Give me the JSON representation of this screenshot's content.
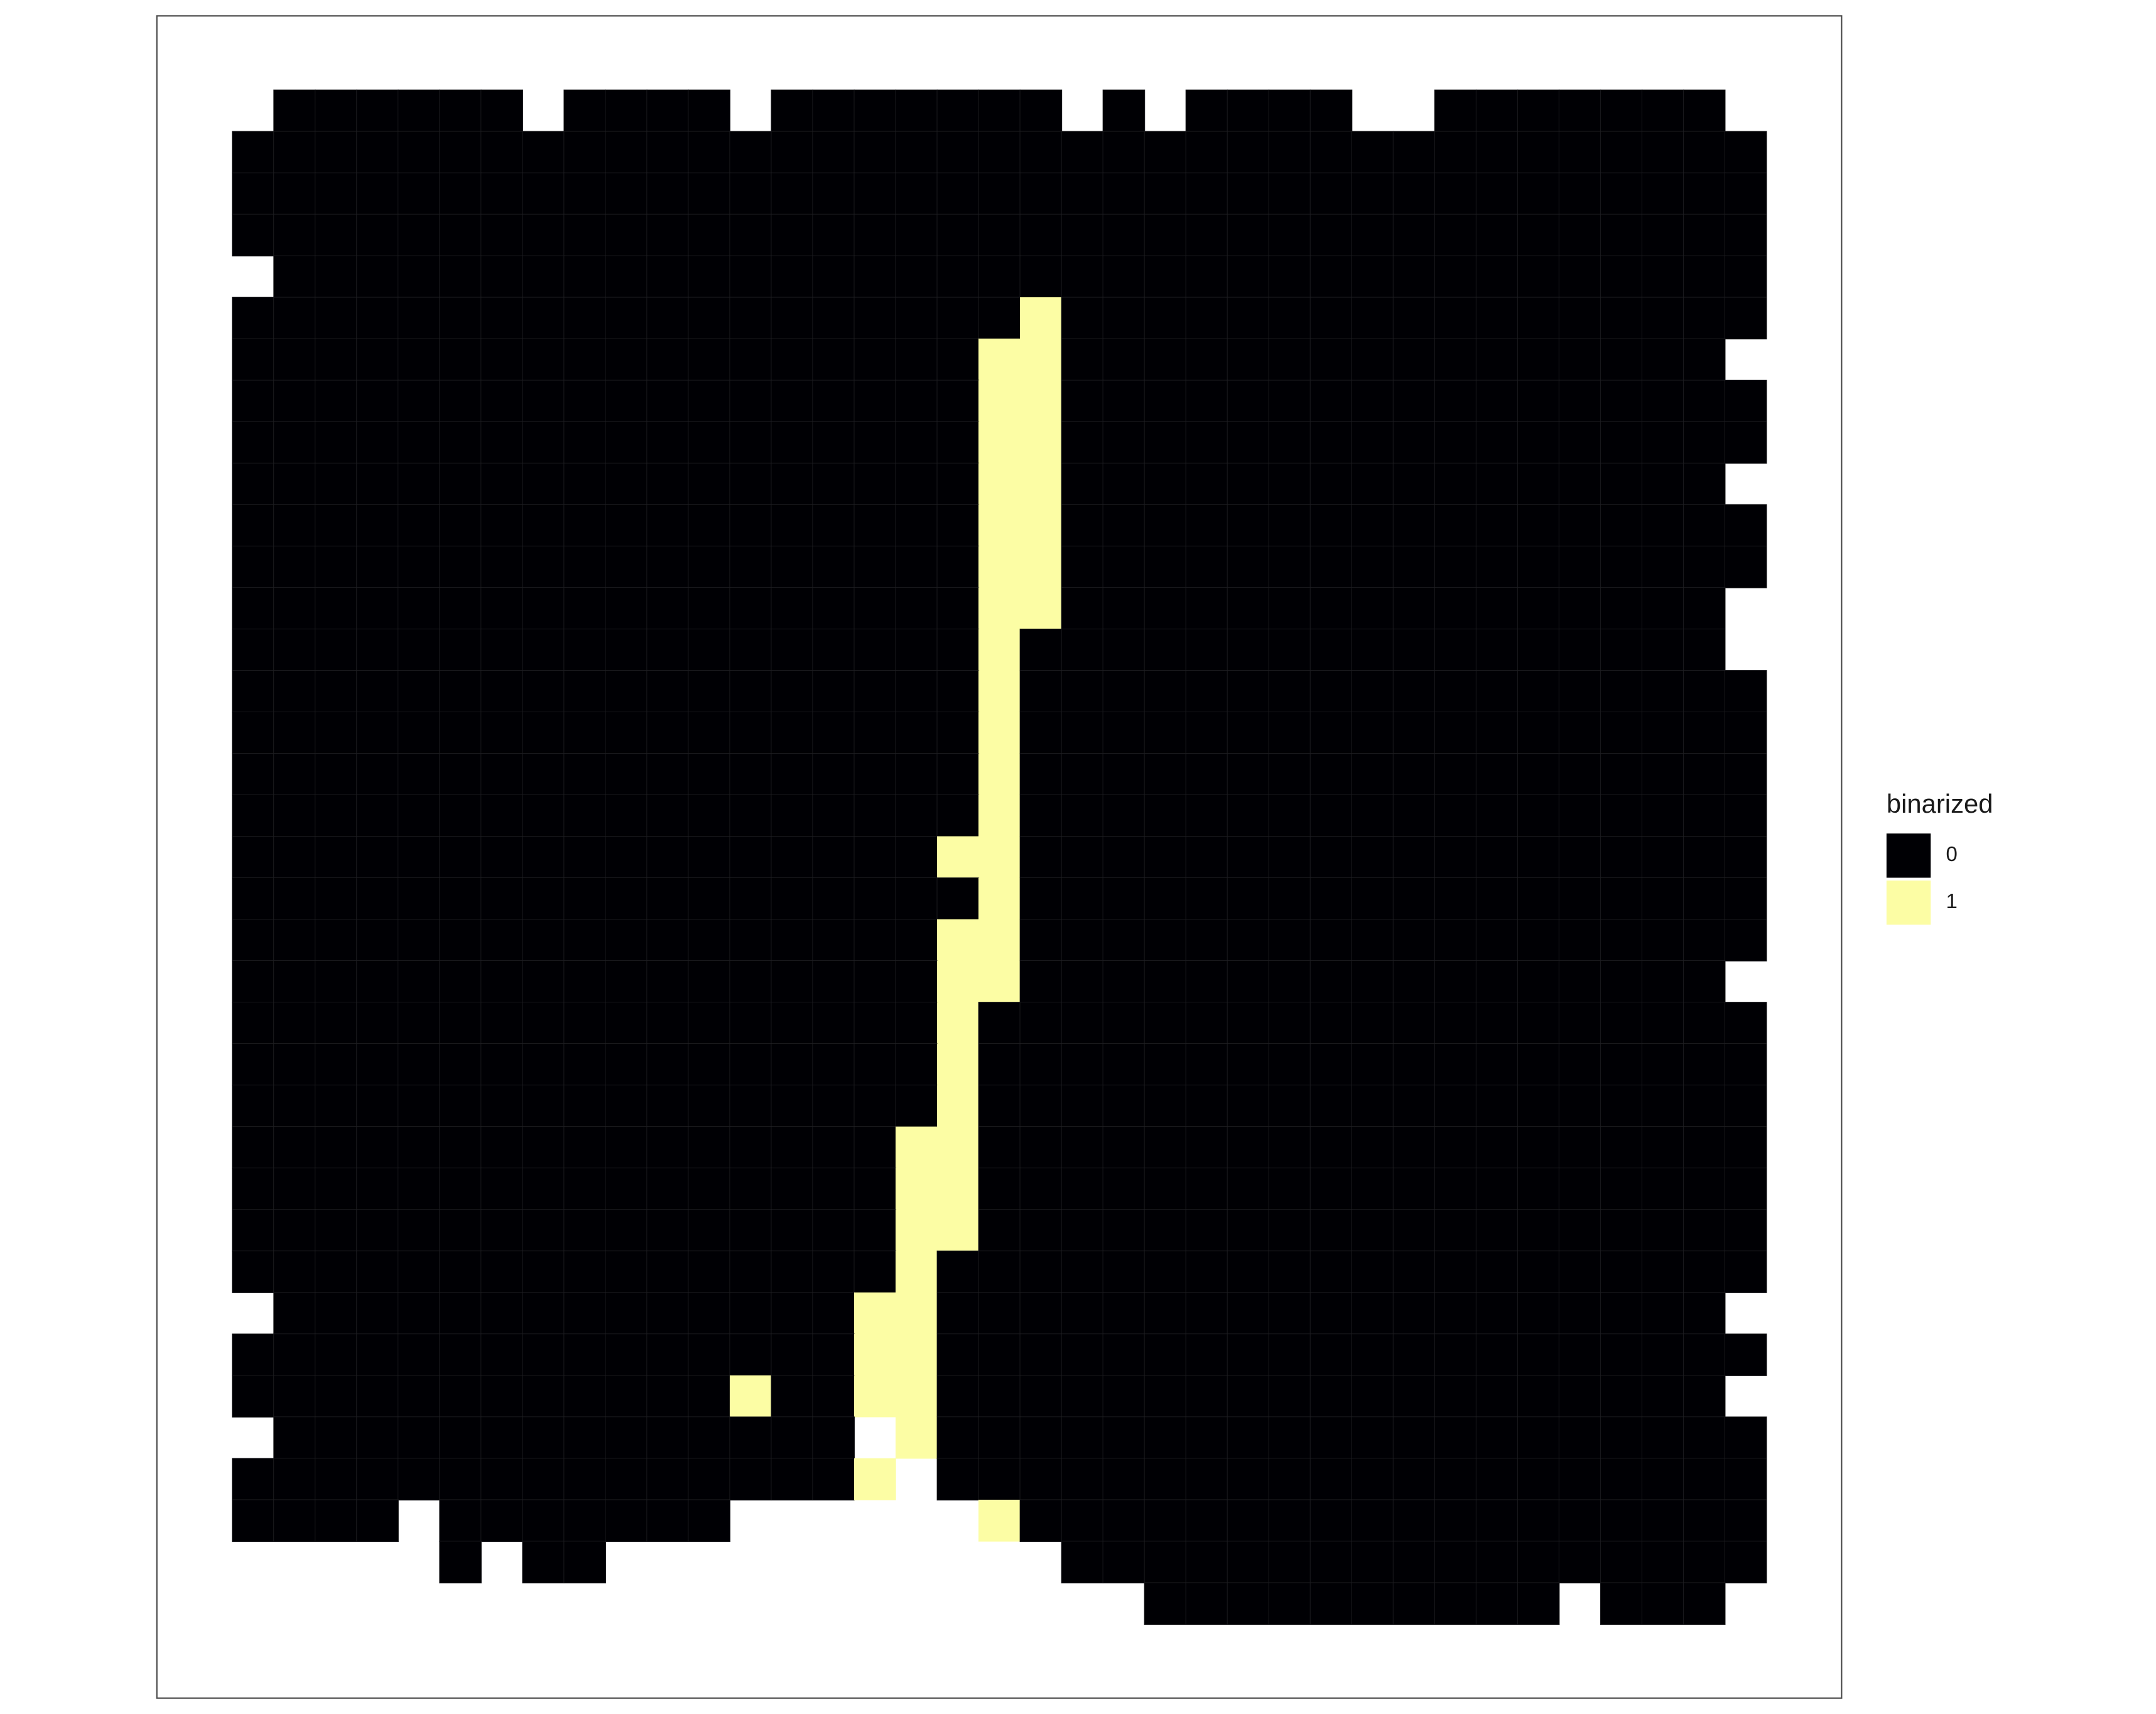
{
  "chart_data": {
    "type": "heatmap",
    "legend": {
      "title": "binarized",
      "levels": [
        0,
        1
      ],
      "colors": [
        "#000004",
        "#fcfda4"
      ]
    },
    "values": [
      [
        null,
        0,
        0,
        0,
        0,
        0,
        0,
        null,
        0,
        0,
        0,
        0,
        null,
        0,
        0,
        0,
        0,
        0,
        0,
        0,
        null,
        0,
        null,
        0,
        0,
        0,
        0,
        null,
        null,
        0,
        0,
        0,
        0,
        0,
        0,
        0,
        null
      ],
      [
        0,
        0,
        0,
        0,
        0,
        0,
        0,
        0,
        0,
        0,
        0,
        0,
        0,
        0,
        0,
        0,
        0,
        0,
        0,
        0,
        0,
        0,
        0,
        0,
        0,
        0,
        0,
        0,
        0,
        0,
        0,
        0,
        0,
        0,
        0,
        0,
        0
      ],
      [
        0,
        0,
        0,
        0,
        0,
        0,
        0,
        0,
        0,
        0,
        0,
        0,
        0,
        0,
        0,
        0,
        0,
        0,
        0,
        0,
        0,
        0,
        0,
        0,
        0,
        0,
        0,
        0,
        0,
        0,
        0,
        0,
        0,
        0,
        0,
        0,
        0
      ],
      [
        0,
        0,
        0,
        0,
        0,
        0,
        0,
        0,
        0,
        0,
        0,
        0,
        0,
        0,
        0,
        0,
        0,
        0,
        0,
        0,
        0,
        0,
        0,
        0,
        0,
        0,
        0,
        0,
        0,
        0,
        0,
        0,
        0,
        0,
        0,
        0,
        0
      ],
      [
        null,
        0,
        0,
        0,
        0,
        0,
        0,
        0,
        0,
        0,
        0,
        0,
        0,
        0,
        0,
        0,
        0,
        0,
        0,
        0,
        0,
        0,
        0,
        0,
        0,
        0,
        0,
        0,
        0,
        0,
        0,
        0,
        0,
        0,
        0,
        0,
        0
      ],
      [
        0,
        0,
        0,
        0,
        0,
        0,
        0,
        0,
        0,
        0,
        0,
        0,
        0,
        0,
        0,
        0,
        0,
        0,
        0,
        1,
        0,
        0,
        0,
        0,
        0,
        0,
        0,
        0,
        0,
        0,
        0,
        0,
        0,
        0,
        0,
        0,
        0
      ],
      [
        0,
        0,
        0,
        0,
        0,
        0,
        0,
        0,
        0,
        0,
        0,
        0,
        0,
        0,
        0,
        0,
        0,
        0,
        1,
        1,
        0,
        0,
        0,
        0,
        0,
        0,
        0,
        0,
        0,
        0,
        0,
        0,
        0,
        0,
        0,
        0,
        null
      ],
      [
        0,
        0,
        0,
        0,
        0,
        0,
        0,
        0,
        0,
        0,
        0,
        0,
        0,
        0,
        0,
        0,
        0,
        0,
        1,
        1,
        0,
        0,
        0,
        0,
        0,
        0,
        0,
        0,
        0,
        0,
        0,
        0,
        0,
        0,
        0,
        0,
        0
      ],
      [
        0,
        0,
        0,
        0,
        0,
        0,
        0,
        0,
        0,
        0,
        0,
        0,
        0,
        0,
        0,
        0,
        0,
        0,
        1,
        1,
        0,
        0,
        0,
        0,
        0,
        0,
        0,
        0,
        0,
        0,
        0,
        0,
        0,
        0,
        0,
        0,
        0
      ],
      [
        0,
        0,
        0,
        0,
        0,
        0,
        0,
        0,
        0,
        0,
        0,
        0,
        0,
        0,
        0,
        0,
        0,
        0,
        1,
        1,
        0,
        0,
        0,
        0,
        0,
        0,
        0,
        0,
        0,
        0,
        0,
        0,
        0,
        0,
        0,
        0,
        null
      ],
      [
        0,
        0,
        0,
        0,
        0,
        0,
        0,
        0,
        0,
        0,
        0,
        0,
        0,
        0,
        0,
        0,
        0,
        0,
        1,
        1,
        0,
        0,
        0,
        0,
        0,
        0,
        0,
        0,
        0,
        0,
        0,
        0,
        0,
        0,
        0,
        0,
        0
      ],
      [
        0,
        0,
        0,
        0,
        0,
        0,
        0,
        0,
        0,
        0,
        0,
        0,
        0,
        0,
        0,
        0,
        0,
        0,
        1,
        1,
        0,
        0,
        0,
        0,
        0,
        0,
        0,
        0,
        0,
        0,
        0,
        0,
        0,
        0,
        0,
        0,
        0
      ],
      [
        0,
        0,
        0,
        0,
        0,
        0,
        0,
        0,
        0,
        0,
        0,
        0,
        0,
        0,
        0,
        0,
        0,
        0,
        1,
        1,
        0,
        0,
        0,
        0,
        0,
        0,
        0,
        0,
        0,
        0,
        0,
        0,
        0,
        0,
        0,
        0,
        null
      ],
      [
        0,
        0,
        0,
        0,
        0,
        0,
        0,
        0,
        0,
        0,
        0,
        0,
        0,
        0,
        0,
        0,
        0,
        0,
        1,
        0,
        0,
        0,
        0,
        0,
        0,
        0,
        0,
        0,
        0,
        0,
        0,
        0,
        0,
        0,
        0,
        0,
        null
      ],
      [
        0,
        0,
        0,
        0,
        0,
        0,
        0,
        0,
        0,
        0,
        0,
        0,
        0,
        0,
        0,
        0,
        0,
        0,
        1,
        0,
        0,
        0,
        0,
        0,
        0,
        0,
        0,
        0,
        0,
        0,
        0,
        0,
        0,
        0,
        0,
        0,
        0
      ],
      [
        0,
        0,
        0,
        0,
        0,
        0,
        0,
        0,
        0,
        0,
        0,
        0,
        0,
        0,
        0,
        0,
        0,
        0,
        1,
        0,
        0,
        0,
        0,
        0,
        0,
        0,
        0,
        0,
        0,
        0,
        0,
        0,
        0,
        0,
        0,
        0,
        0
      ],
      [
        0,
        0,
        0,
        0,
        0,
        0,
        0,
        0,
        0,
        0,
        0,
        0,
        0,
        0,
        0,
        0,
        0,
        0,
        1,
        0,
        0,
        0,
        0,
        0,
        0,
        0,
        0,
        0,
        0,
        0,
        0,
        0,
        0,
        0,
        0,
        0,
        0
      ],
      [
        0,
        0,
        0,
        0,
        0,
        0,
        0,
        0,
        0,
        0,
        0,
        0,
        0,
        0,
        0,
        0,
        0,
        0,
        1,
        0,
        0,
        0,
        0,
        0,
        0,
        0,
        0,
        0,
        0,
        0,
        0,
        0,
        0,
        0,
        0,
        0,
        0
      ],
      [
        0,
        0,
        0,
        0,
        0,
        0,
        0,
        0,
        0,
        0,
        0,
        0,
        0,
        0,
        0,
        0,
        0,
        1,
        1,
        0,
        0,
        0,
        0,
        0,
        0,
        0,
        0,
        0,
        0,
        0,
        0,
        0,
        0,
        0,
        0,
        0,
        0
      ],
      [
        0,
        0,
        0,
        0,
        0,
        0,
        0,
        0,
        0,
        0,
        0,
        0,
        0,
        0,
        0,
        0,
        0,
        0,
        1,
        0,
        0,
        0,
        0,
        0,
        0,
        0,
        0,
        0,
        0,
        0,
        0,
        0,
        0,
        0,
        0,
        0,
        0
      ],
      [
        0,
        0,
        0,
        0,
        0,
        0,
        0,
        0,
        0,
        0,
        0,
        0,
        0,
        0,
        0,
        0,
        0,
        1,
        1,
        0,
        0,
        0,
        0,
        0,
        0,
        0,
        0,
        0,
        0,
        0,
        0,
        0,
        0,
        0,
        0,
        0,
        0
      ],
      [
        0,
        0,
        0,
        0,
        0,
        0,
        0,
        0,
        0,
        0,
        0,
        0,
        0,
        0,
        0,
        0,
        0,
        1,
        1,
        0,
        0,
        0,
        0,
        0,
        0,
        0,
        0,
        0,
        0,
        0,
        0,
        0,
        0,
        0,
        0,
        0,
        null
      ],
      [
        0,
        0,
        0,
        0,
        0,
        0,
        0,
        0,
        0,
        0,
        0,
        0,
        0,
        0,
        0,
        0,
        0,
        1,
        0,
        0,
        0,
        0,
        0,
        0,
        0,
        0,
        0,
        0,
        0,
        0,
        0,
        0,
        0,
        0,
        0,
        0,
        0
      ],
      [
        0,
        0,
        0,
        0,
        0,
        0,
        0,
        0,
        0,
        0,
        0,
        0,
        0,
        0,
        0,
        0,
        0,
        1,
        0,
        0,
        0,
        0,
        0,
        0,
        0,
        0,
        0,
        0,
        0,
        0,
        0,
        0,
        0,
        0,
        0,
        0,
        0
      ],
      [
        0,
        0,
        0,
        0,
        0,
        0,
        0,
        0,
        0,
        0,
        0,
        0,
        0,
        0,
        0,
        0,
        0,
        1,
        0,
        0,
        0,
        0,
        0,
        0,
        0,
        0,
        0,
        0,
        0,
        0,
        0,
        0,
        0,
        0,
        0,
        0,
        0
      ],
      [
        0,
        0,
        0,
        0,
        0,
        0,
        0,
        0,
        0,
        0,
        0,
        0,
        0,
        0,
        0,
        0,
        1,
        1,
        0,
        0,
        0,
        0,
        0,
        0,
        0,
        0,
        0,
        0,
        0,
        0,
        0,
        0,
        0,
        0,
        0,
        0,
        0
      ],
      [
        0,
        0,
        0,
        0,
        0,
        0,
        0,
        0,
        0,
        0,
        0,
        0,
        0,
        0,
        0,
        0,
        1,
        1,
        0,
        0,
        0,
        0,
        0,
        0,
        0,
        0,
        0,
        0,
        0,
        0,
        0,
        0,
        0,
        0,
        0,
        0,
        0
      ],
      [
        0,
        0,
        0,
        0,
        0,
        0,
        0,
        0,
        0,
        0,
        0,
        0,
        0,
        0,
        0,
        0,
        1,
        1,
        0,
        0,
        0,
        0,
        0,
        0,
        0,
        0,
        0,
        0,
        0,
        0,
        0,
        0,
        0,
        0,
        0,
        0,
        0
      ],
      [
        0,
        0,
        0,
        0,
        0,
        0,
        0,
        0,
        0,
        0,
        0,
        0,
        0,
        0,
        0,
        0,
        1,
        0,
        0,
        0,
        0,
        0,
        0,
        0,
        0,
        0,
        0,
        0,
        0,
        0,
        0,
        0,
        0,
        0,
        0,
        0,
        0
      ],
      [
        null,
        0,
        0,
        0,
        0,
        0,
        0,
        0,
        0,
        0,
        0,
        0,
        0,
        0,
        0,
        1,
        1,
        0,
        0,
        0,
        0,
        0,
        0,
        0,
        0,
        0,
        0,
        0,
        0,
        0,
        0,
        0,
        0,
        0,
        0,
        0,
        null
      ],
      [
        0,
        0,
        0,
        0,
        0,
        0,
        0,
        0,
        0,
        0,
        0,
        0,
        0,
        0,
        0,
        1,
        1,
        0,
        0,
        0,
        0,
        0,
        0,
        0,
        0,
        0,
        0,
        0,
        0,
        0,
        0,
        0,
        0,
        0,
        0,
        0,
        0
      ],
      [
        0,
        0,
        0,
        0,
        0,
        0,
        0,
        0,
        0,
        0,
        0,
        0,
        1,
        0,
        0,
        1,
        1,
        0,
        0,
        0,
        0,
        0,
        0,
        0,
        0,
        0,
        0,
        0,
        0,
        0,
        0,
        0,
        0,
        0,
        0,
        0,
        null
      ],
      [
        null,
        0,
        0,
        0,
        0,
        0,
        0,
        0,
        0,
        0,
        0,
        0,
        0,
        0,
        0,
        null,
        1,
        0,
        0,
        0,
        0,
        0,
        0,
        0,
        0,
        0,
        0,
        0,
        0,
        0,
        0,
        0,
        0,
        0,
        0,
        0,
        0
      ],
      [
        0,
        0,
        0,
        0,
        0,
        0,
        0,
        0,
        0,
        0,
        0,
        0,
        0,
        0,
        0,
        1,
        null,
        0,
        0,
        0,
        0,
        0,
        0,
        0,
        0,
        0,
        0,
        0,
        0,
        0,
        0,
        0,
        0,
        0,
        0,
        0,
        0
      ],
      [
        0,
        0,
        0,
        0,
        null,
        0,
        0,
        0,
        0,
        0,
        0,
        0,
        null,
        null,
        null,
        null,
        null,
        null,
        1,
        0,
        0,
        0,
        0,
        0,
        0,
        0,
        0,
        0,
        0,
        0,
        0,
        0,
        0,
        0,
        0,
        0,
        0
      ],
      [
        null,
        null,
        null,
        null,
        null,
        0,
        null,
        0,
        0,
        null,
        null,
        null,
        null,
        null,
        null,
        null,
        null,
        null,
        null,
        null,
        0,
        0,
        0,
        0,
        0,
        0,
        0,
        0,
        0,
        0,
        0,
        0,
        0,
        0,
        0,
        0,
        0
      ],
      [
        null,
        null,
        null,
        null,
        null,
        null,
        null,
        null,
        null,
        null,
        null,
        null,
        null,
        null,
        null,
        null,
        null,
        null,
        null,
        null,
        null,
        null,
        0,
        0,
        0,
        0,
        0,
        0,
        0,
        0,
        0,
        0,
        null,
        0,
        0,
        0,
        null
      ]
    ]
  }
}
